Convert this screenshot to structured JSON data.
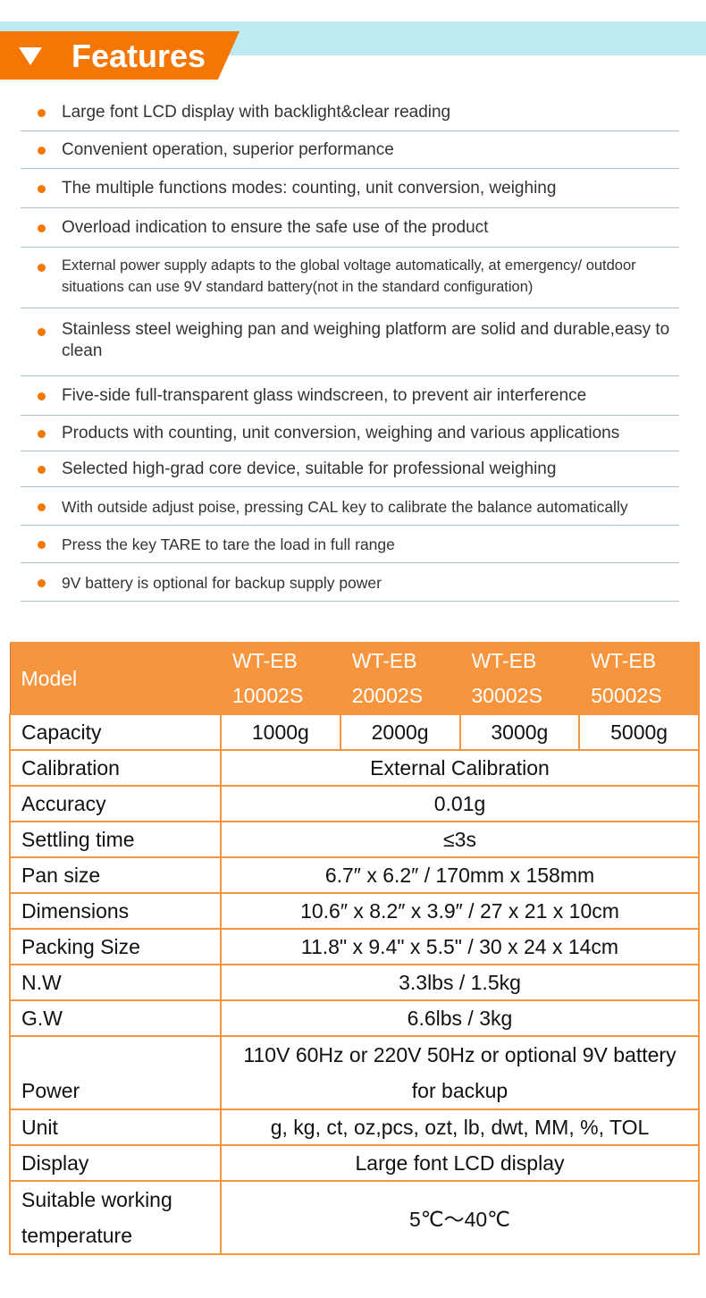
{
  "header": {
    "title": "Features",
    "icon": "triangle-down-icon",
    "accent": "#f47705"
  },
  "features": [
    "Large font LCD display with backlight&clear reading",
    "Convenient operation, superior performance",
    "The multiple functions modes: counting, unit conversion, weighing",
    "Overload indication to ensure the safe use of the product",
    "External power supply adapts to the global voltage automatically, at emergency/ outdoor situations can use 9V standard battery(not in the standard configuration)",
    "Stainless steel weighing pan and weighing platform are solid and durable,easy to clean",
    "Five-side full-transparent glass windscreen, to prevent air interference",
    "Products with counting, unit conversion, weighing and various applications",
    "Selected high-grad core device, suitable for professional weighing",
    "With outside adjust poise, pressing CAL key to calibrate the balance automatically",
    "Press the key TARE to tare the load in full range",
    "9V battery is optional for backup supply power"
  ],
  "table": {
    "model_label": "Model",
    "models": [
      "WT-EB 10002S",
      "WT-EB 20002S",
      "WT-EB 30002S",
      "WT-EB 50002S"
    ],
    "capacity_label": "Capacity",
    "capacities": [
      "1000g",
      "2000g",
      "3000g",
      "5000g"
    ],
    "rows": [
      {
        "label": "Calibration",
        "value": "External Calibration"
      },
      {
        "label": "Accuracy",
        "value": "0.01g"
      },
      {
        "label": "Settling time",
        "value": "≤3s"
      },
      {
        "label": "Pan size",
        "value": "6.7″ x 6.2″ / 170mm x 158mm"
      },
      {
        "label": "Dimensions",
        "value": "10.6″ x 8.2″ x 3.9″ / 27 x 21 x 10cm"
      },
      {
        "label": "Packing Size",
        "value": "11.8\" x 9.4\" x 5.5\" / 30 x 24 x 14cm"
      },
      {
        "label": "N.W",
        "value": "3.3lbs / 1.5kg"
      },
      {
        "label": "G.W",
        "value": "6.6lbs / 3kg"
      },
      {
        "label": "Power",
        "value": "110V 60Hz or 220V 50Hz or optional 9V battery for backup"
      },
      {
        "label": "Unit",
        "value": "g, kg, ct, oz,pcs, ozt, lb, dwt, MM, %, TOL"
      },
      {
        "label": "Display",
        "value": "Large font LCD display"
      },
      {
        "label": "Suitable working temperature",
        "value": "5℃～40℃"
      }
    ]
  }
}
